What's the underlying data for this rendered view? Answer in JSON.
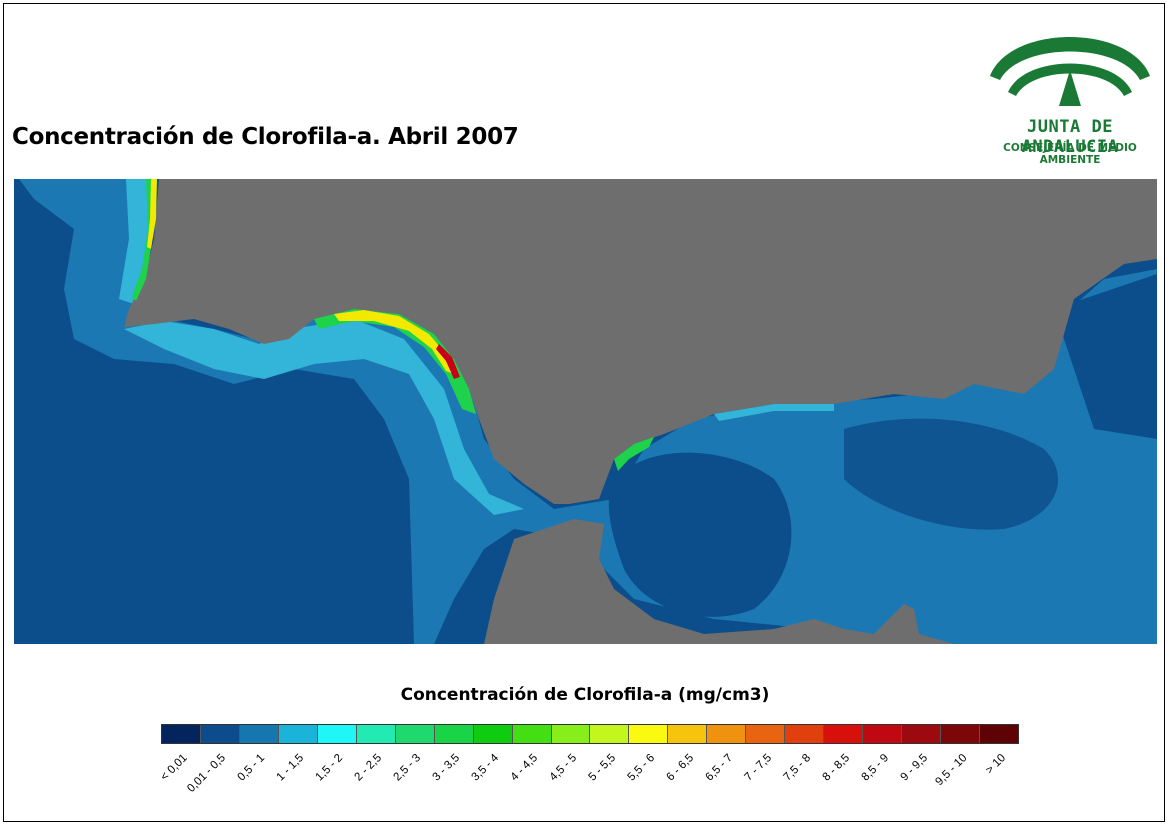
{
  "title": "Concentración de Clorofila-a. Abril 2007",
  "logo": {
    "name": "JUNTA DE ANDALUCIA",
    "subtitle": "CONSEJERÍA DE MEDIO AMBIENTE",
    "color": "#1a7a35"
  },
  "map_colors": {
    "land": "#6e6e6e",
    "ocean_low": "#0c4d8b",
    "ocean_mid": "#1e7ab5",
    "ocean_high": "#32b5d8",
    "coast_green": "#1fd24b",
    "coast_yellow": "#f2e800",
    "coast_red": "#c8001a"
  },
  "legend": {
    "title": "Concentración de Clorofila-a (mg/cm3)",
    "classes": [
      {
        "label": "< 0,01",
        "color": "#03245c"
      },
      {
        "label": "0,01 - 0,5",
        "color": "#0c4c8c"
      },
      {
        "label": "0,5 - 1",
        "color": "#1677b0"
      },
      {
        "label": "1 - 1,5",
        "color": "#1ab4da"
      },
      {
        "label": "1,5 - 2",
        "color": "#1ef6f8"
      },
      {
        "label": "2 - 2,5",
        "color": "#21eab2"
      },
      {
        "label": "2,5 - 3",
        "color": "#1fd86e"
      },
      {
        "label": "3 - 3,5",
        "color": "#1ad448"
      },
      {
        "label": "3,5 - 4",
        "color": "#10cc10"
      },
      {
        "label": "4 - 4,5",
        "color": "#44de14"
      },
      {
        "label": "4,5 - 5",
        "color": "#88ee1a"
      },
      {
        "label": "5 - 5,5",
        "color": "#c2f61c"
      },
      {
        "label": "5,5 - 6",
        "color": "#fafa10"
      },
      {
        "label": "6 - 6,5",
        "color": "#f6c40c"
      },
      {
        "label": "6,5 - 7",
        "color": "#ee9210"
      },
      {
        "label": "7 - 7,5",
        "color": "#e86410"
      },
      {
        "label": "7,5 - 8",
        "color": "#e0400e"
      },
      {
        "label": "8 - 8,5",
        "color": "#d8100c"
      },
      {
        "label": "8,5 - 9",
        "color": "#c00812"
      },
      {
        "label": "9 - 9,5",
        "color": "#9c0a10"
      },
      {
        "label": "9,5 - 10",
        "color": "#7c0608"
      },
      {
        "label": "> 10",
        "color": "#5e0206"
      }
    ]
  }
}
